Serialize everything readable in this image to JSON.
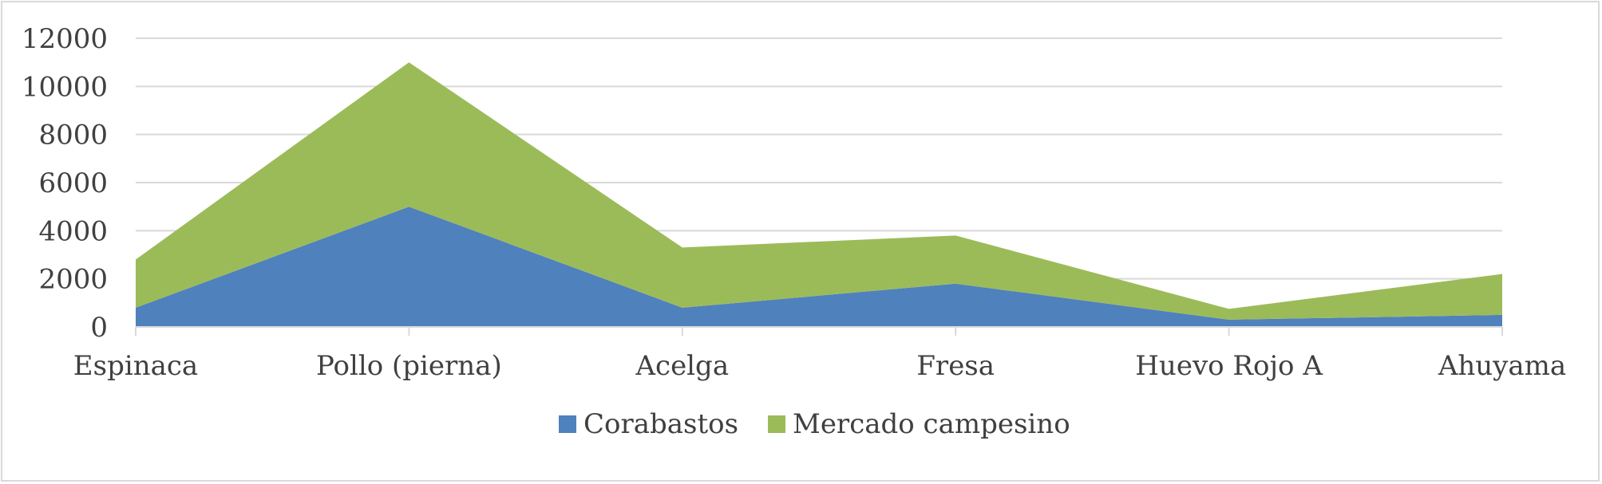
{
  "chart_data": {
    "type": "area",
    "stacked": true,
    "categories": [
      "Espinaca",
      "Pollo (pierna)",
      "Acelga",
      "Fresa",
      "Huevo Rojo A",
      "Ahuyama"
    ],
    "series": [
      {
        "name": "Corabastos",
        "values": [
          800,
          5000,
          800,
          1800,
          300,
          500
        ],
        "color": "#4f81bd"
      },
      {
        "name": "Mercado campesino",
        "values": [
          2000,
          6000,
          2500,
          2000,
          450,
          1700
        ],
        "color": "#9bbb59"
      }
    ],
    "title": "",
    "xlabel": "",
    "ylabel": "",
    "ylim": [
      0,
      12000
    ],
    "yticks": [
      0,
      2000,
      4000,
      6000,
      8000,
      10000,
      12000
    ],
    "grid": true,
    "legend_position": "bottom"
  }
}
